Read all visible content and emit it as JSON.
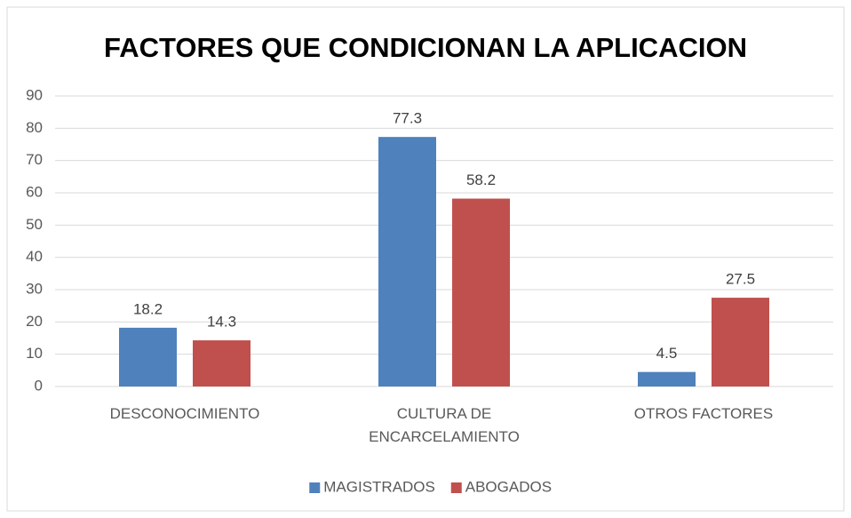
{
  "chart_data": {
    "type": "bar",
    "title": "FACTORES QUE CONDICIONAN LA APLICACION",
    "categories": [
      "DESCONOCIMIENTO",
      "CULTURA DE ENCARCELAMIENTO",
      "OTROS FACTORES"
    ],
    "series": [
      {
        "name": "MAGISTRADOS",
        "color": "#4f81bd",
        "values": [
          18.2,
          77.3,
          4.5
        ]
      },
      {
        "name": "ABOGADOS",
        "color": "#c0504d",
        "values": [
          14.3,
          58.2,
          27.5
        ]
      }
    ],
    "ylim": [
      0,
      90
    ],
    "yticks": [
      0,
      10,
      20,
      30,
      40,
      50,
      60,
      70,
      80,
      90
    ],
    "grid": true,
    "legend": "bottom"
  }
}
